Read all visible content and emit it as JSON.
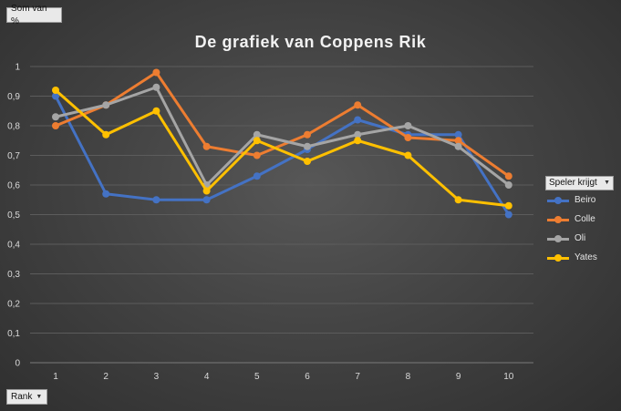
{
  "pivot": {
    "values_field": "Som van %",
    "axis_field": "Rank",
    "legend_field": "Speler krijgt"
  },
  "chart_data": {
    "type": "line",
    "title": "De grafiek van Coppens Rik",
    "xlabel": "",
    "ylabel": "",
    "categories": [
      "1",
      "2",
      "3",
      "4",
      "5",
      "6",
      "7",
      "8",
      "9",
      "10"
    ],
    "ylim": [
      0,
      1
    ],
    "yticks": [
      "0",
      "0,1",
      "0,2",
      "0,3",
      "0,4",
      "0,5",
      "0,6",
      "0,7",
      "0,8",
      "0,9",
      "1"
    ],
    "grid": true,
    "legend_position": "right",
    "series": [
      {
        "name": "Beiro",
        "color": "#4472c4",
        "values": [
          0.9,
          0.57,
          0.55,
          0.55,
          0.63,
          0.72,
          0.82,
          0.77,
          0.77,
          0.5
        ]
      },
      {
        "name": "Colle",
        "color": "#ed7d31",
        "values": [
          0.8,
          0.87,
          0.98,
          0.73,
          0.7,
          0.77,
          0.87,
          0.76,
          0.75,
          0.63
        ]
      },
      {
        "name": "Oli",
        "color": "#a5a5a5",
        "values": [
          0.83,
          0.87,
          0.93,
          0.6,
          0.77,
          0.73,
          0.77,
          0.8,
          0.73,
          0.6
        ]
      },
      {
        "name": "Yates",
        "color": "#ffc000",
        "values": [
          0.92,
          0.77,
          0.85,
          0.58,
          0.75,
          0.68,
          0.75,
          0.7,
          0.55,
          0.53
        ]
      }
    ]
  }
}
